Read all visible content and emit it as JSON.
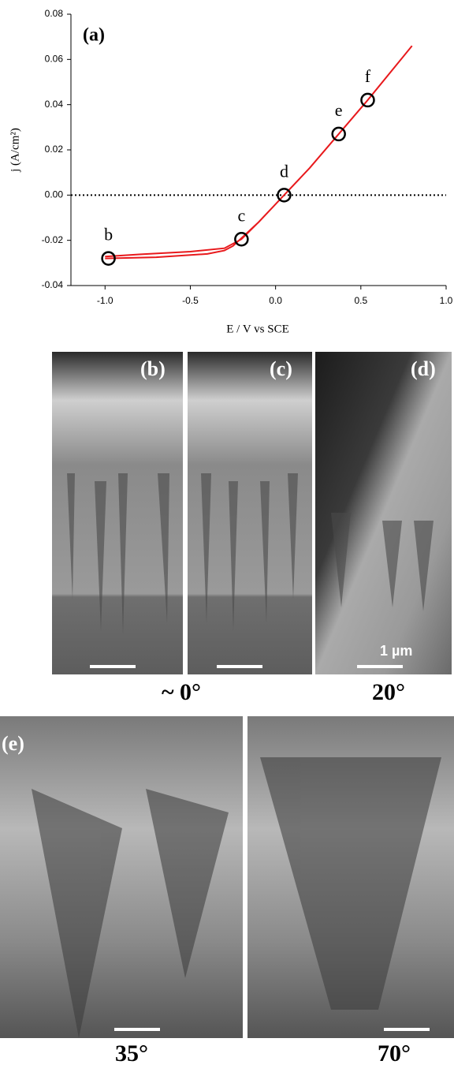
{
  "chart_data": {
    "type": "line",
    "annotation": "(a)",
    "xlabel": "E / V vs SCE",
    "ylabel": "j (A/cm²)",
    "xlim": [
      -1.2,
      1.0
    ],
    "xticks": [
      {
        "value": -1,
        "label": "-1.0"
      },
      -0.5,
      {
        "value": 0,
        "label": "0.0"
      },
      0.5,
      {
        "value": 1,
        "label": "1.0"
      }
    ],
    "ylim": [
      -0.04,
      0.08
    ],
    "yticks": [
      -0.04,
      -0.02,
      {
        "value": 0,
        "label": "0.00"
      },
      0.02,
      0.04,
      0.06,
      0.08
    ],
    "hline": 0,
    "series": [
      {
        "color": "#e8191c",
        "x": [
          -1.0,
          -0.7,
          -0.4,
          -0.3,
          -0.25,
          -0.2,
          -0.1,
          0.0,
          0.05,
          0.2,
          0.37,
          0.54,
          0.8,
          0.54,
          0.37,
          0.2,
          0.05,
          0.0,
          -0.1,
          -0.2,
          -0.3,
          -0.5,
          -0.8,
          -1.0
        ],
        "values": [
          -0.028,
          -0.0275,
          -0.026,
          -0.0245,
          -0.0225,
          -0.019,
          -0.012,
          -0.004,
          0.0,
          0.012,
          0.027,
          0.042,
          0.066,
          0.042,
          0.027,
          0.012,
          0.0,
          -0.004,
          -0.012,
          -0.0195,
          -0.0235,
          -0.025,
          -0.0262,
          -0.0272
        ]
      }
    ],
    "markers": {
      "x": [
        -0.98,
        -0.2,
        0.05,
        0.37,
        0.54
      ],
      "values": [
        -0.028,
        -0.0195,
        0.0,
        0.027,
        0.042
      ],
      "labels": [
        "b",
        "c",
        "d",
        "e",
        "f"
      ]
    }
  },
  "images": {
    "panels": [
      "(b)",
      "(c)",
      "(d)",
      "(e)"
    ],
    "scale_label": "1 µm",
    "angle_labels": [
      "~ 0°",
      "20°",
      "35°",
      "70°"
    ]
  }
}
